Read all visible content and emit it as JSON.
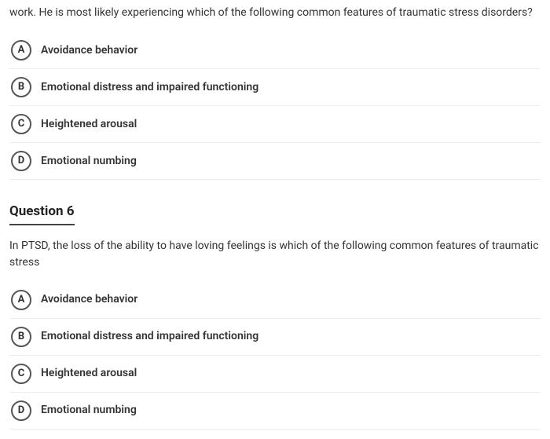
{
  "q5": {
    "stem_fragment": "work. He is most likely experiencing which of the following common features of traumatic stress disorders?",
    "options": [
      {
        "letter": "A",
        "text": "Avoidance behavior"
      },
      {
        "letter": "B",
        "text": "Emotional distress and impaired functioning"
      },
      {
        "letter": "C",
        "text": "Heightened arousal"
      },
      {
        "letter": "D",
        "text": "Emotional numbing"
      }
    ]
  },
  "q6": {
    "title": "Question 6",
    "stem": "In PTSD, the loss of the ability to have loving feelings is which of the following common features of traumatic stress",
    "options": [
      {
        "letter": "A",
        "text": "Avoidance behavior"
      },
      {
        "letter": "B",
        "text": "Emotional distress and impaired functioning"
      },
      {
        "letter": "C",
        "text": "Heightened arousal"
      },
      {
        "letter": "D",
        "text": "Emotional numbing"
      }
    ]
  },
  "style": {
    "circle_border_color": "#555555",
    "text_color": "#333333",
    "divider_color": "#eeeeee",
    "title_underline_color": "#444444"
  }
}
